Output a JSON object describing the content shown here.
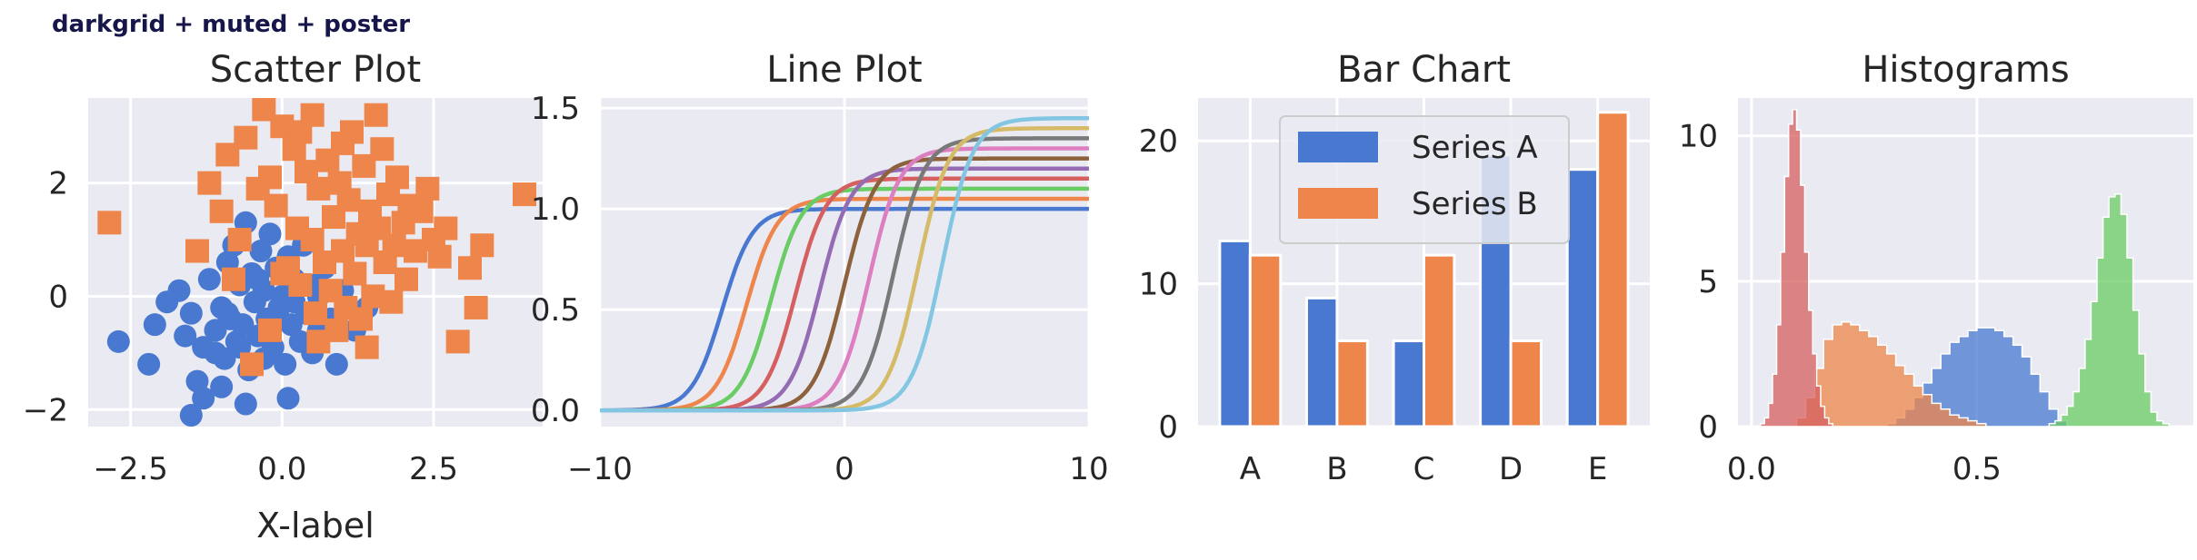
{
  "figure_title": "darkgrid + muted + poster",
  "style": {
    "axes_bg": "#eaeaf2",
    "grid_color": "#ffffff",
    "palette": [
      "#4878d0",
      "#ee854a",
      "#6acc64",
      "#d65f5f",
      "#956cb4",
      "#8c613c",
      "#dc7ec0",
      "#797979",
      "#d5bb67",
      "#82c6e2"
    ]
  },
  "chart_data": [
    {
      "type": "scatter",
      "title": "Scatter Plot",
      "xlabel": "X-label",
      "ylabel": "",
      "xlim": [
        -3.2,
        4.3
      ],
      "ylim": [
        -2.3,
        3.5
      ],
      "xticks": [
        -2.5,
        0.0,
        2.5
      ],
      "xtick_labels": [
        "−2.5",
        "0.0",
        "2.5"
      ],
      "yticks": [
        -2,
        0,
        2
      ],
      "ytick_labels": [
        "−2",
        "0",
        "2"
      ],
      "grid": true,
      "series": [
        {
          "marker": "circle",
          "color": "#4878d0",
          "points": [
            [
              -2.7,
              -0.8
            ],
            [
              -2.2,
              -1.2
            ],
            [
              -2.1,
              -0.5
            ],
            [
              -1.9,
              -0.1
            ],
            [
              -1.7,
              0.1
            ],
            [
              -1.6,
              -0.7
            ],
            [
              -1.5,
              -0.3
            ],
            [
              -1.4,
              -1.5
            ],
            [
              -1.3,
              -0.9
            ],
            [
              -1.2,
              0.3
            ],
            [
              -1.1,
              -0.6
            ],
            [
              -1.0,
              -0.2
            ],
            [
              -0.95,
              -1.1
            ],
            [
              -0.9,
              0.6
            ],
            [
              -0.85,
              -0.4
            ],
            [
              -0.8,
              0.9
            ],
            [
              -0.75,
              -0.8
            ],
            [
              -0.7,
              0.2
            ],
            [
              -0.65,
              -0.5
            ],
            [
              -0.6,
              1.3
            ],
            [
              -0.55,
              -1.3
            ],
            [
              -0.5,
              0.4
            ],
            [
              -0.45,
              -0.1
            ],
            [
              -0.4,
              -0.7
            ],
            [
              -0.35,
              0.8
            ],
            [
              -0.3,
              0.1
            ],
            [
              -0.25,
              -0.4
            ],
            [
              -0.2,
              1.1
            ],
            [
              -0.15,
              -0.9
            ],
            [
              -0.1,
              0.5
            ],
            [
              -0.05,
              -0.2
            ],
            [
              0.0,
              0.0
            ],
            [
              0.05,
              -1.2
            ],
            [
              0.1,
              0.7
            ],
            [
              0.15,
              -0.5
            ],
            [
              0.2,
              0.3
            ],
            [
              0.3,
              -0.8
            ],
            [
              0.35,
              0.9
            ],
            [
              0.4,
              -0.3
            ],
            [
              0.5,
              -1.0
            ],
            [
              0.55,
              0.2
            ],
            [
              0.6,
              -0.6
            ],
            [
              0.7,
              0.5
            ],
            [
              0.8,
              -0.4
            ],
            [
              0.9,
              -1.2
            ],
            [
              1.0,
              0.1
            ],
            [
              1.2,
              -0.6
            ],
            [
              1.4,
              -0.2
            ],
            [
              -1.3,
              -1.8
            ],
            [
              -1.0,
              -1.6
            ],
            [
              -0.6,
              -1.9
            ],
            [
              -1.5,
              -2.1
            ],
            [
              0.1,
              -1.8
            ],
            [
              -1.1,
              -1.0
            ],
            [
              -0.9,
              -0.3
            ],
            [
              -0.4,
              0.3
            ],
            [
              0.2,
              -0.1
            ],
            [
              -0.3,
              -1.1
            ],
            [
              0.6,
              0.0
            ],
            [
              -0.7,
              -0.9
            ]
          ]
        },
        {
          "marker": "square",
          "color": "#ee854a",
          "points": [
            [
              -2.85,
              1.3
            ],
            [
              -1.4,
              0.8
            ],
            [
              -1.0,
              1.5
            ],
            [
              -0.8,
              0.3
            ],
            [
              -0.6,
              2.8
            ],
            [
              -0.5,
              -1.2
            ],
            [
              -0.3,
              3.3
            ],
            [
              -0.2,
              2.1
            ],
            [
              -0.1,
              1.6
            ],
            [
              0.0,
              3.0
            ],
            [
              0.1,
              0.5
            ],
            [
              0.2,
              2.6
            ],
            [
              0.25,
              1.2
            ],
            [
              0.3,
              0.2
            ],
            [
              0.4,
              2.2
            ],
            [
              0.5,
              3.2
            ],
            [
              0.5,
              1.0
            ],
            [
              0.55,
              -0.3
            ],
            [
              0.6,
              1.9
            ],
            [
              0.7,
              0.6
            ],
            [
              0.75,
              2.4
            ],
            [
              0.8,
              0.1
            ],
            [
              0.85,
              1.4
            ],
            [
              0.9,
              -0.6
            ],
            [
              0.95,
              2.0
            ],
            [
              1.0,
              0.8
            ],
            [
              1.05,
              -0.2
            ],
            [
              1.1,
              1.7
            ],
            [
              1.15,
              2.9
            ],
            [
              1.2,
              0.4
            ],
            [
              1.25,
              1.1
            ],
            [
              1.3,
              -0.4
            ],
            [
              1.35,
              2.3
            ],
            [
              1.4,
              0.9
            ],
            [
              1.45,
              1.5
            ],
            [
              1.5,
              0.0
            ],
            [
              1.55,
              3.2
            ],
            [
              1.6,
              1.2
            ],
            [
              1.65,
              2.6
            ],
            [
              1.7,
              0.6
            ],
            [
              1.75,
              1.8
            ],
            [
              1.8,
              -0.1
            ],
            [
              1.85,
              0.9
            ],
            [
              1.9,
              2.1
            ],
            [
              2.0,
              1.3
            ],
            [
              2.05,
              0.3
            ],
            [
              2.1,
              1.6
            ],
            [
              2.2,
              0.8
            ],
            [
              2.3,
              1.5
            ],
            [
              2.5,
              1.0
            ],
            [
              2.6,
              0.7
            ],
            [
              2.9,
              -0.8
            ],
            [
              3.1,
              0.5
            ],
            [
              3.2,
              -0.2
            ],
            [
              3.3,
              0.9
            ],
            [
              4.0,
              1.8
            ],
            [
              -1.2,
              2.0
            ],
            [
              -0.9,
              2.5
            ],
            [
              -0.4,
              1.9
            ],
            [
              -0.2,
              -0.6
            ],
            [
              -0.7,
              1.0
            ],
            [
              0.3,
              2.9
            ],
            [
              0.6,
              -0.8
            ],
            [
              0.0,
              0.4
            ],
            [
              1.0,
              2.7
            ],
            [
              2.4,
              1.9
            ],
            [
              2.7,
              1.2
            ],
            [
              1.4,
              -0.9
            ]
          ]
        }
      ]
    },
    {
      "type": "line",
      "title": "Line Plot",
      "xlabel": "",
      "ylabel": "",
      "xlim": [
        -10,
        10
      ],
      "ylim": [
        -0.08,
        1.55
      ],
      "xticks": [
        -10,
        0,
        10
      ],
      "xtick_labels": [
        "−10",
        "0",
        "10"
      ],
      "yticks": [
        0.0,
        0.5,
        1.0,
        1.5
      ],
      "ytick_labels": [
        "0.0",
        "0.5",
        "1.0",
        "1.5"
      ],
      "grid": true,
      "series": [
        {
          "center": -5.0,
          "amplitude": 1.0,
          "color": "#4878d0"
        },
        {
          "center": -4.0,
          "amplitude": 1.05,
          "color": "#ee854a"
        },
        {
          "center": -3.0,
          "amplitude": 1.1,
          "color": "#6acc64"
        },
        {
          "center": -2.0,
          "amplitude": 1.15,
          "color": "#d65f5f"
        },
        {
          "center": -1.0,
          "amplitude": 1.2,
          "color": "#956cb4"
        },
        {
          "center": 0.0,
          "amplitude": 1.25,
          "color": "#8c613c"
        },
        {
          "center": 1.0,
          "amplitude": 1.3,
          "color": "#dc7ec0"
        },
        {
          "center": 2.0,
          "amplitude": 1.35,
          "color": "#797979"
        },
        {
          "center": 3.0,
          "amplitude": 1.4,
          "color": "#d5bb67"
        },
        {
          "center": 4.0,
          "amplitude": 1.45,
          "color": "#82c6e2"
        }
      ]
    },
    {
      "type": "bar",
      "title": "Bar Chart",
      "xlabel": "",
      "ylabel": "",
      "categories": [
        "A",
        "B",
        "C",
        "D",
        "E"
      ],
      "ylim": [
        0,
        23
      ],
      "yticks": [
        0,
        10,
        20
      ],
      "ytick_labels": [
        "0",
        "10",
        "20"
      ],
      "grid": true,
      "legend_position": "upper-center",
      "series": [
        {
          "name": "Series A",
          "color": "#4878d0",
          "values": [
            13,
            9,
            6,
            19,
            18
          ]
        },
        {
          "name": "Series B",
          "color": "#ee854a",
          "values": [
            12,
            6,
            12,
            6,
            22
          ]
        }
      ]
    },
    {
      "type": "histogram",
      "title": "Histograms",
      "xlabel": "",
      "ylabel": "",
      "xlim": [
        -0.03,
        0.98
      ],
      "ylim": [
        0,
        11.3
      ],
      "xticks": [
        0.0,
        0.5
      ],
      "xtick_labels": [
        "0.0",
        "0.5"
      ],
      "yticks": [
        0,
        5,
        10
      ],
      "ytick_labels": [
        "0",
        "5",
        "10"
      ],
      "grid": true,
      "series": [
        {
          "color": "#4878d0",
          "bin_start": 0.3,
          "bin_width": 0.02,
          "heights": [
            0.1,
            0.3,
            0.6,
            1.0,
            1.5,
            2.0,
            2.5,
            2.9,
            3.1,
            3.3,
            3.4,
            3.4,
            3.3,
            3.1,
            2.8,
            2.4,
            1.8,
            1.2,
            0.6,
            0.2
          ]
        },
        {
          "color": "#ee854a",
          "bin_start": 0.1,
          "bin_width": 0.02,
          "heights": [
            0.3,
            1.0,
            2.0,
            3.0,
            3.5,
            3.6,
            3.5,
            3.3,
            3.1,
            2.8,
            2.5,
            2.1,
            1.8,
            1.4,
            1.1,
            0.8,
            0.6,
            0.4,
            0.3,
            0.2,
            0.1
          ]
        },
        {
          "color": "#6acc64",
          "bin_start": 0.66,
          "bin_width": 0.0133,
          "heights": [
            0.1,
            0.2,
            0.4,
            0.7,
            1.2,
            2.0,
            3.0,
            4.3,
            5.8,
            7.2,
            7.9,
            8.0,
            7.3,
            5.8,
            4.0,
            2.5,
            1.2,
            0.5,
            0.2,
            0.1
          ]
        },
        {
          "color": "#d65f5f",
          "bin_start": 0.02,
          "bin_width": 0.0089,
          "heights": [
            0.1,
            0.3,
            0.8,
            1.8,
            3.5,
            6.0,
            8.6,
            10.4,
            10.9,
            10.2,
            8.3,
            6.0,
            4.0,
            2.5,
            1.4,
            0.7,
            0.3,
            0.1
          ]
        }
      ]
    }
  ]
}
